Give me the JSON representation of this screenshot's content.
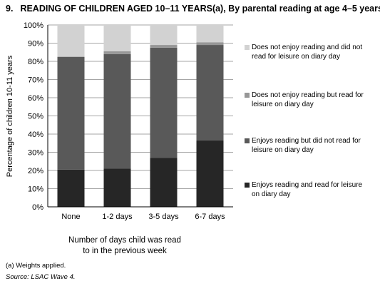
{
  "title": {
    "number": "9.",
    "text": "READING OF CHILDREN AGED 10–11 YEARS(a), By parental reading at age 4–5 years"
  },
  "chart_data": {
    "type": "bar",
    "stacked": true,
    "categories": [
      "None",
      "1-2 days",
      "3-5 days",
      "6-7 days"
    ],
    "ylim": [
      0,
      100
    ],
    "yticks": [
      "0%",
      "10%",
      "20%",
      "30%",
      "40%",
      "50%",
      "60%",
      "70%",
      "80%",
      "90%",
      "100%"
    ],
    "ylabel": "Percentage of children 10-11 years",
    "xlabel_lines": [
      "Number of days child was read",
      "to in the previous week"
    ],
    "grid": true,
    "legend_position": "right",
    "series": [
      {
        "name": "Enjoys reading and read for leisure on diary day",
        "color": "#262626",
        "values": [
          20.5,
          21,
          27,
          36.5
        ]
      },
      {
        "name": "Enjoys reading but did not read for leisure on diary day",
        "color": "#595959",
        "values": [
          62,
          63,
          60.5,
          52.5
        ]
      },
      {
        "name": "Does not enjoy reading but read for leisure on diary day",
        "color": "#979797",
        "values": [
          0,
          1.5,
          1.5,
          1.5
        ]
      },
      {
        "name": "Does not enjoy reading and did not read for leisure on diary day",
        "color": "#d2d2d2",
        "values": [
          17.5,
          14.5,
          11,
          9.5
        ]
      }
    ],
    "legend": [
      {
        "lines": [
          "Does not enjoy reading and did not",
          "read for leisure on diary day"
        ],
        "color": "#d2d2d2"
      },
      {
        "lines": [
          "Does not enjoy reading but read for",
          "leisure on diary day"
        ],
        "color": "#979797"
      },
      {
        "lines": [
          "Enjoys reading but did not read for",
          "leisure on diary day"
        ],
        "color": "#595959"
      },
      {
        "lines": [
          "Enjoys reading and read for leisure",
          "on diary day"
        ],
        "color": "#262626"
      }
    ]
  },
  "footnote": "(a) Weights applied.",
  "source": "Source: LSAC Wave 4."
}
